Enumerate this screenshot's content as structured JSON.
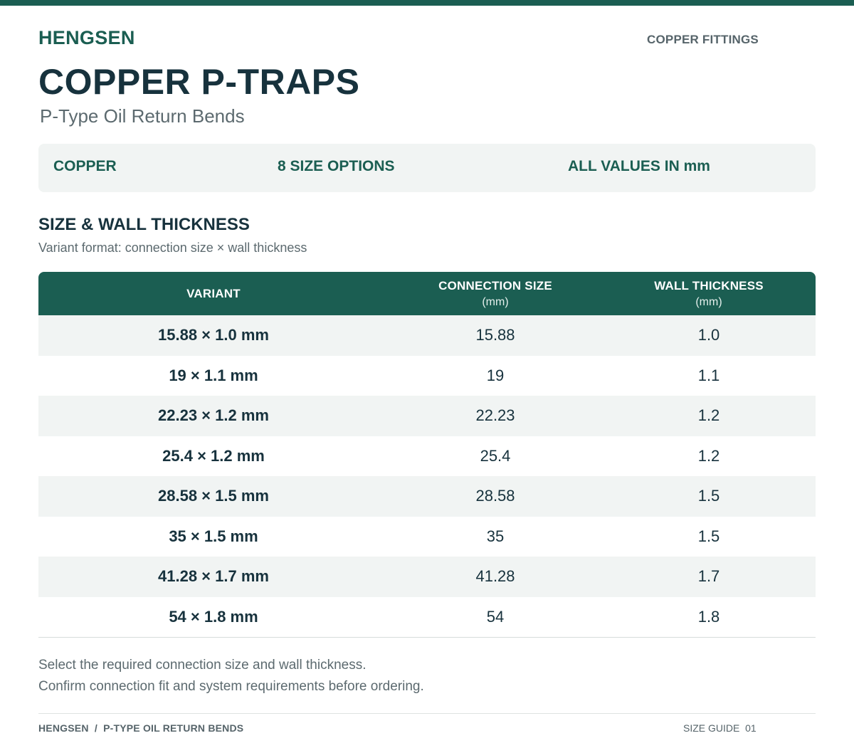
{
  "header": {
    "brand": "HENGSEN",
    "category": "COPPER FITTINGS",
    "title": "COPPER P-TRAPS",
    "subtitle": "P-Type Oil Return Bends"
  },
  "info": {
    "material": "COPPER",
    "options": "8 SIZE OPTIONS",
    "units": "ALL VALUES IN mm"
  },
  "section": {
    "title": "SIZE & WALL THICKNESS",
    "note": "Variant format: connection size × wall thickness"
  },
  "table": {
    "headers": [
      {
        "label": "VARIANT",
        "unit": ""
      },
      {
        "label": "CONNECTION SIZE",
        "unit": "(mm)"
      },
      {
        "label": "WALL THICKNESS",
        "unit": "(mm)"
      }
    ],
    "rows": [
      {
        "variant": "15.88 × 1.0 mm",
        "size": "15.88",
        "wall": "1.0"
      },
      {
        "variant": "19 × 1.1 mm",
        "size": "19",
        "wall": "1.1"
      },
      {
        "variant": "22.23 × 1.2 mm",
        "size": "22.23",
        "wall": "1.2"
      },
      {
        "variant": "25.4 × 1.2 mm",
        "size": "25.4",
        "wall": "1.2"
      },
      {
        "variant": "28.58 × 1.5 mm",
        "size": "28.58",
        "wall": "1.5"
      },
      {
        "variant": "35 × 1.5 mm",
        "size": "35",
        "wall": "1.5"
      },
      {
        "variant": "41.28 × 1.7 mm",
        "size": "41.28",
        "wall": "1.7"
      },
      {
        "variant": "54 × 1.8 mm",
        "size": "54",
        "wall": "1.8"
      }
    ]
  },
  "notes": [
    "Select the required connection size and wall thickness.",
    "Confirm connection fit and system requirements before ordering."
  ],
  "footer": {
    "left": "HENGSEN  /  P-TYPE OIL RETURN BENDS",
    "right": "SIZE GUIDE  01"
  },
  "colors": {
    "brand_green": "#1b5e52",
    "text_dark": "#17323d",
    "row_tint": "#f1f4f3"
  }
}
